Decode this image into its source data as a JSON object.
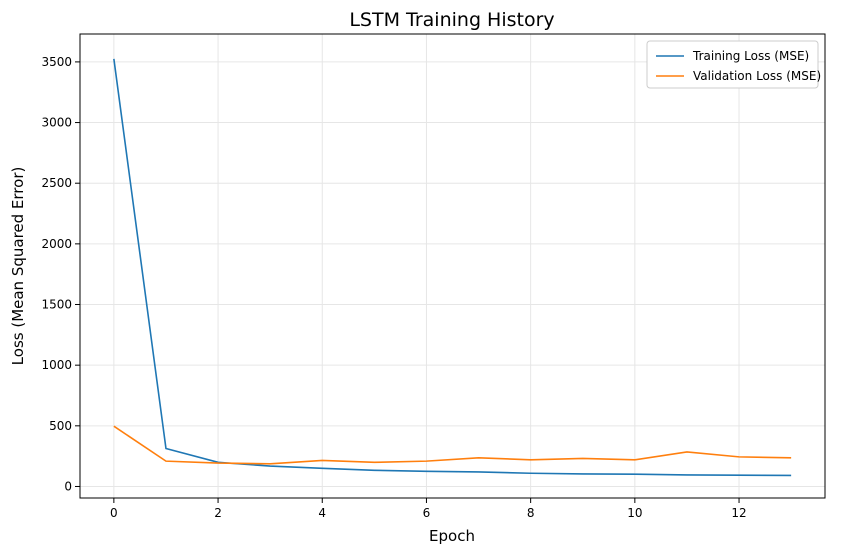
{
  "chart_data": {
    "type": "line",
    "title": "LSTM Training History",
    "xlabel": "Epoch",
    "ylabel": "Loss (Mean Squared Error)",
    "x": [
      0,
      1,
      2,
      3,
      4,
      5,
      6,
      7,
      8,
      9,
      10,
      11,
      12,
      13
    ],
    "xlim": [
      -0.65,
      13.65
    ],
    "ylim": [
      -95,
      3730
    ],
    "xticks": [
      0,
      2,
      4,
      6,
      8,
      10,
      12
    ],
    "yticks": [
      0,
      500,
      1000,
      1500,
      2000,
      2500,
      3000,
      3500
    ],
    "grid": true,
    "legend": "top-right",
    "series": [
      {
        "name": "Training Loss (MSE)",
        "color": "#1f77b4",
        "values": [
          3525,
          313,
          199,
          168,
          150,
          133,
          125,
          120,
          109,
          103,
          101,
          95,
          93,
          91
        ]
      },
      {
        "name": "Validation Loss (MSE)",
        "color": "#ff7f0e",
        "values": [
          497,
          209,
          193,
          187,
          215,
          199,
          209,
          236,
          220,
          231,
          220,
          285,
          244,
          236
        ]
      }
    ]
  }
}
